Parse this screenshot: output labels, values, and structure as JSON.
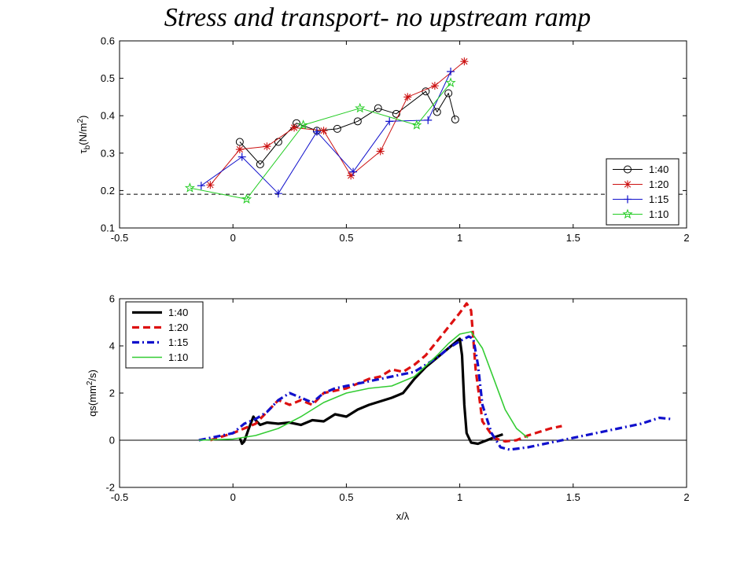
{
  "title": "Stress and transport- no upstream ramp",
  "chart_data": [
    {
      "type": "line",
      "ylabel_main": "τ",
      "ylabel_sub": "b",
      "ylabel_unit_pre": "(N/m",
      "ylabel_unit_sup": "2",
      "ylabel_unit_post": ")",
      "xlim": [
        -0.5,
        2
      ],
      "ylim": [
        0.1,
        0.6
      ],
      "xticks": [
        -0.5,
        0,
        0.5,
        1,
        1.5,
        2
      ],
      "yticks": [
        0.1,
        0.2,
        0.3,
        0.4,
        0.5,
        0.6
      ],
      "grid": false,
      "legend_position": "right",
      "reference_line": {
        "y": 0.19,
        "style": "dashed",
        "color": "#000000"
      },
      "series": [
        {
          "name": "1:40",
          "color": "#000000",
          "marker": "circle",
          "x": [
            0.03,
            0.12,
            0.2,
            0.28,
            0.37,
            0.46,
            0.55,
            0.64,
            0.72,
            0.85,
            0.9,
            0.95,
            0.98
          ],
          "y": [
            0.33,
            0.27,
            0.33,
            0.38,
            0.36,
            0.365,
            0.385,
            0.42,
            0.405,
            0.465,
            0.41,
            0.46,
            0.39
          ]
        },
        {
          "name": "1:20",
          "color": "#cc1111",
          "marker": "asterisk",
          "x": [
            -0.1,
            0.03,
            0.15,
            0.27,
            0.4,
            0.52,
            0.65,
            0.77,
            0.89,
            1.02
          ],
          "y": [
            0.215,
            0.31,
            0.318,
            0.368,
            0.36,
            0.24,
            0.305,
            0.45,
            0.48,
            0.545
          ]
        },
        {
          "name": "1:15",
          "color": "#1111cc",
          "marker": "plus",
          "x": [
            -0.14,
            0.04,
            0.2,
            0.37,
            0.53,
            0.69,
            0.86,
            0.96
          ],
          "y": [
            0.213,
            0.29,
            0.192,
            0.357,
            0.25,
            0.385,
            0.388,
            0.518
          ]
        },
        {
          "name": "1:10",
          "color": "#22cc22",
          "marker": "star",
          "x": [
            -0.19,
            0.06,
            0.31,
            0.56,
            0.81,
            0.96
          ],
          "y": [
            0.207,
            0.177,
            0.375,
            0.42,
            0.375,
            0.488
          ]
        }
      ]
    },
    {
      "type": "line",
      "ylabel_pre": "qs(mm",
      "ylabel_sup": "2",
      "ylabel_post": "/s)",
      "xlabel": "x/λ",
      "xlim": [
        -0.5,
        2
      ],
      "ylim": [
        -2,
        6
      ],
      "xticks": [
        -0.5,
        0,
        0.5,
        1,
        1.5,
        2
      ],
      "yticks": [
        -2,
        0,
        2,
        4,
        6
      ],
      "grid": false,
      "legend_position": "top-left",
      "reference_line": {
        "y": 0,
        "style": "solid",
        "color": "#000000"
      },
      "series": [
        {
          "name": "1:40",
          "color": "#000000",
          "style": "solid",
          "width": 3.2,
          "x": [
            0.03,
            0.04,
            0.05,
            0.07,
            0.09,
            0.1,
            0.12,
            0.15,
            0.2,
            0.25,
            0.3,
            0.35,
            0.4,
            0.45,
            0.5,
            0.55,
            0.6,
            0.65,
            0.7,
            0.75,
            0.8,
            0.85,
            0.9,
            0.95,
            1.0,
            1.01,
            1.02,
            1.03,
            1.05,
            1.08,
            1.12,
            1.16,
            1.19
          ],
          "y": [
            0.1,
            -0.15,
            -0.05,
            0.5,
            1.0,
            0.85,
            0.65,
            0.75,
            0.7,
            0.75,
            0.65,
            0.85,
            0.8,
            1.1,
            1.0,
            1.3,
            1.5,
            1.65,
            1.8,
            2.0,
            2.6,
            3.1,
            3.5,
            3.9,
            4.3,
            3.6,
            1.5,
            0.3,
            -0.1,
            -0.15,
            0.0,
            0.15,
            0.25
          ]
        },
        {
          "name": "1:20",
          "color": "#dd1111",
          "style": "dashed",
          "width": 3.2,
          "x": [
            -0.1,
            0.0,
            0.05,
            0.1,
            0.15,
            0.2,
            0.25,
            0.3,
            0.35,
            0.4,
            0.45,
            0.5,
            0.55,
            0.6,
            0.65,
            0.7,
            0.75,
            0.8,
            0.85,
            0.9,
            0.95,
            1.0,
            1.03,
            1.05,
            1.07,
            1.1,
            1.15,
            1.2,
            1.25,
            1.3,
            1.35,
            1.4,
            1.45
          ],
          "y": [
            0.0,
            0.3,
            0.5,
            0.7,
            1.2,
            1.7,
            1.5,
            1.7,
            1.5,
            2.0,
            2.1,
            2.2,
            2.4,
            2.6,
            2.7,
            3.0,
            2.9,
            3.2,
            3.6,
            4.2,
            4.8,
            5.4,
            5.8,
            5.5,
            3.0,
            0.8,
            0.1,
            -0.05,
            0.0,
            0.2,
            0.35,
            0.5,
            0.6
          ]
        },
        {
          "name": "1:15",
          "color": "#1111cc",
          "style": "dashdot",
          "width": 3.2,
          "x": [
            -0.15,
            0.0,
            0.05,
            0.1,
            0.15,
            0.2,
            0.25,
            0.3,
            0.35,
            0.4,
            0.45,
            0.5,
            0.6,
            0.7,
            0.8,
            0.9,
            0.95,
            1.0,
            1.04,
            1.06,
            1.08,
            1.1,
            1.14,
            1.18,
            1.22,
            1.3,
            1.4,
            1.5,
            1.6,
            1.7,
            1.8,
            1.88,
            1.93
          ],
          "y": [
            0.0,
            0.3,
            0.7,
            0.9,
            1.2,
            1.7,
            2.0,
            1.8,
            1.6,
            2.0,
            2.2,
            2.3,
            2.5,
            2.7,
            2.9,
            3.5,
            3.9,
            4.2,
            4.4,
            4.3,
            3.2,
            1.5,
            0.3,
            -0.3,
            -0.4,
            -0.3,
            -0.1,
            0.1,
            0.3,
            0.5,
            0.7,
            0.95,
            0.9
          ]
        },
        {
          "name": "1:10",
          "color": "#33cc33",
          "style": "solid",
          "width": 1.6,
          "x": [
            -0.15,
            0.0,
            0.1,
            0.2,
            0.3,
            0.4,
            0.5,
            0.6,
            0.7,
            0.8,
            0.9,
            0.95,
            1.0,
            1.05,
            1.1,
            1.15,
            1.2,
            1.25,
            1.3
          ],
          "y": [
            0.0,
            0.05,
            0.2,
            0.5,
            1.0,
            1.6,
            2.0,
            2.2,
            2.3,
            2.7,
            3.6,
            4.1,
            4.5,
            4.6,
            3.9,
            2.6,
            1.3,
            0.5,
            0.1
          ]
        }
      ]
    }
  ]
}
